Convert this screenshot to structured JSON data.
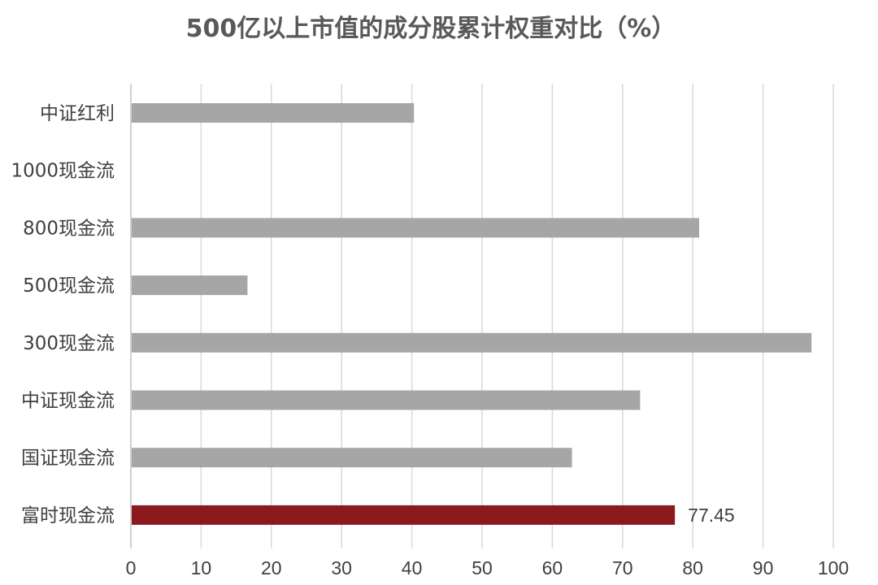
{
  "chart_data": {
    "type": "bar",
    "orientation": "horizontal",
    "title": "500亿以上市值的成分股累计权重对比（%）",
    "xlabel": "",
    "ylabel": "",
    "xlim": [
      0,
      100
    ],
    "x_ticks": [
      "0",
      "10",
      "20",
      "30",
      "40",
      "50",
      "60",
      "70",
      "80",
      "90",
      "100"
    ],
    "tick_values": [
      0,
      10,
      20,
      30,
      40,
      50,
      60,
      70,
      80,
      90,
      100
    ],
    "grid": true,
    "legend": "none",
    "categories": [
      "中证红利",
      "1000现金流",
      "800现金流",
      "500现金流",
      "300现金流",
      "中证现金流",
      "国证现金流",
      "富时现金流"
    ],
    "values": [
      40.3,
      0,
      80.9,
      16.6,
      96.9,
      72.5,
      62.8,
      77.45
    ],
    "highlight_index": 7,
    "data_labels": [
      {
        "index": 7,
        "text": "77.45"
      }
    ],
    "colors": {
      "default_bar": "#a6a6a6",
      "highlight_bar": "#8b1a1d",
      "grid": "#d9d9d9",
      "axis": "#bfbfbf",
      "text": "#404040",
      "title": "#595959"
    }
  }
}
